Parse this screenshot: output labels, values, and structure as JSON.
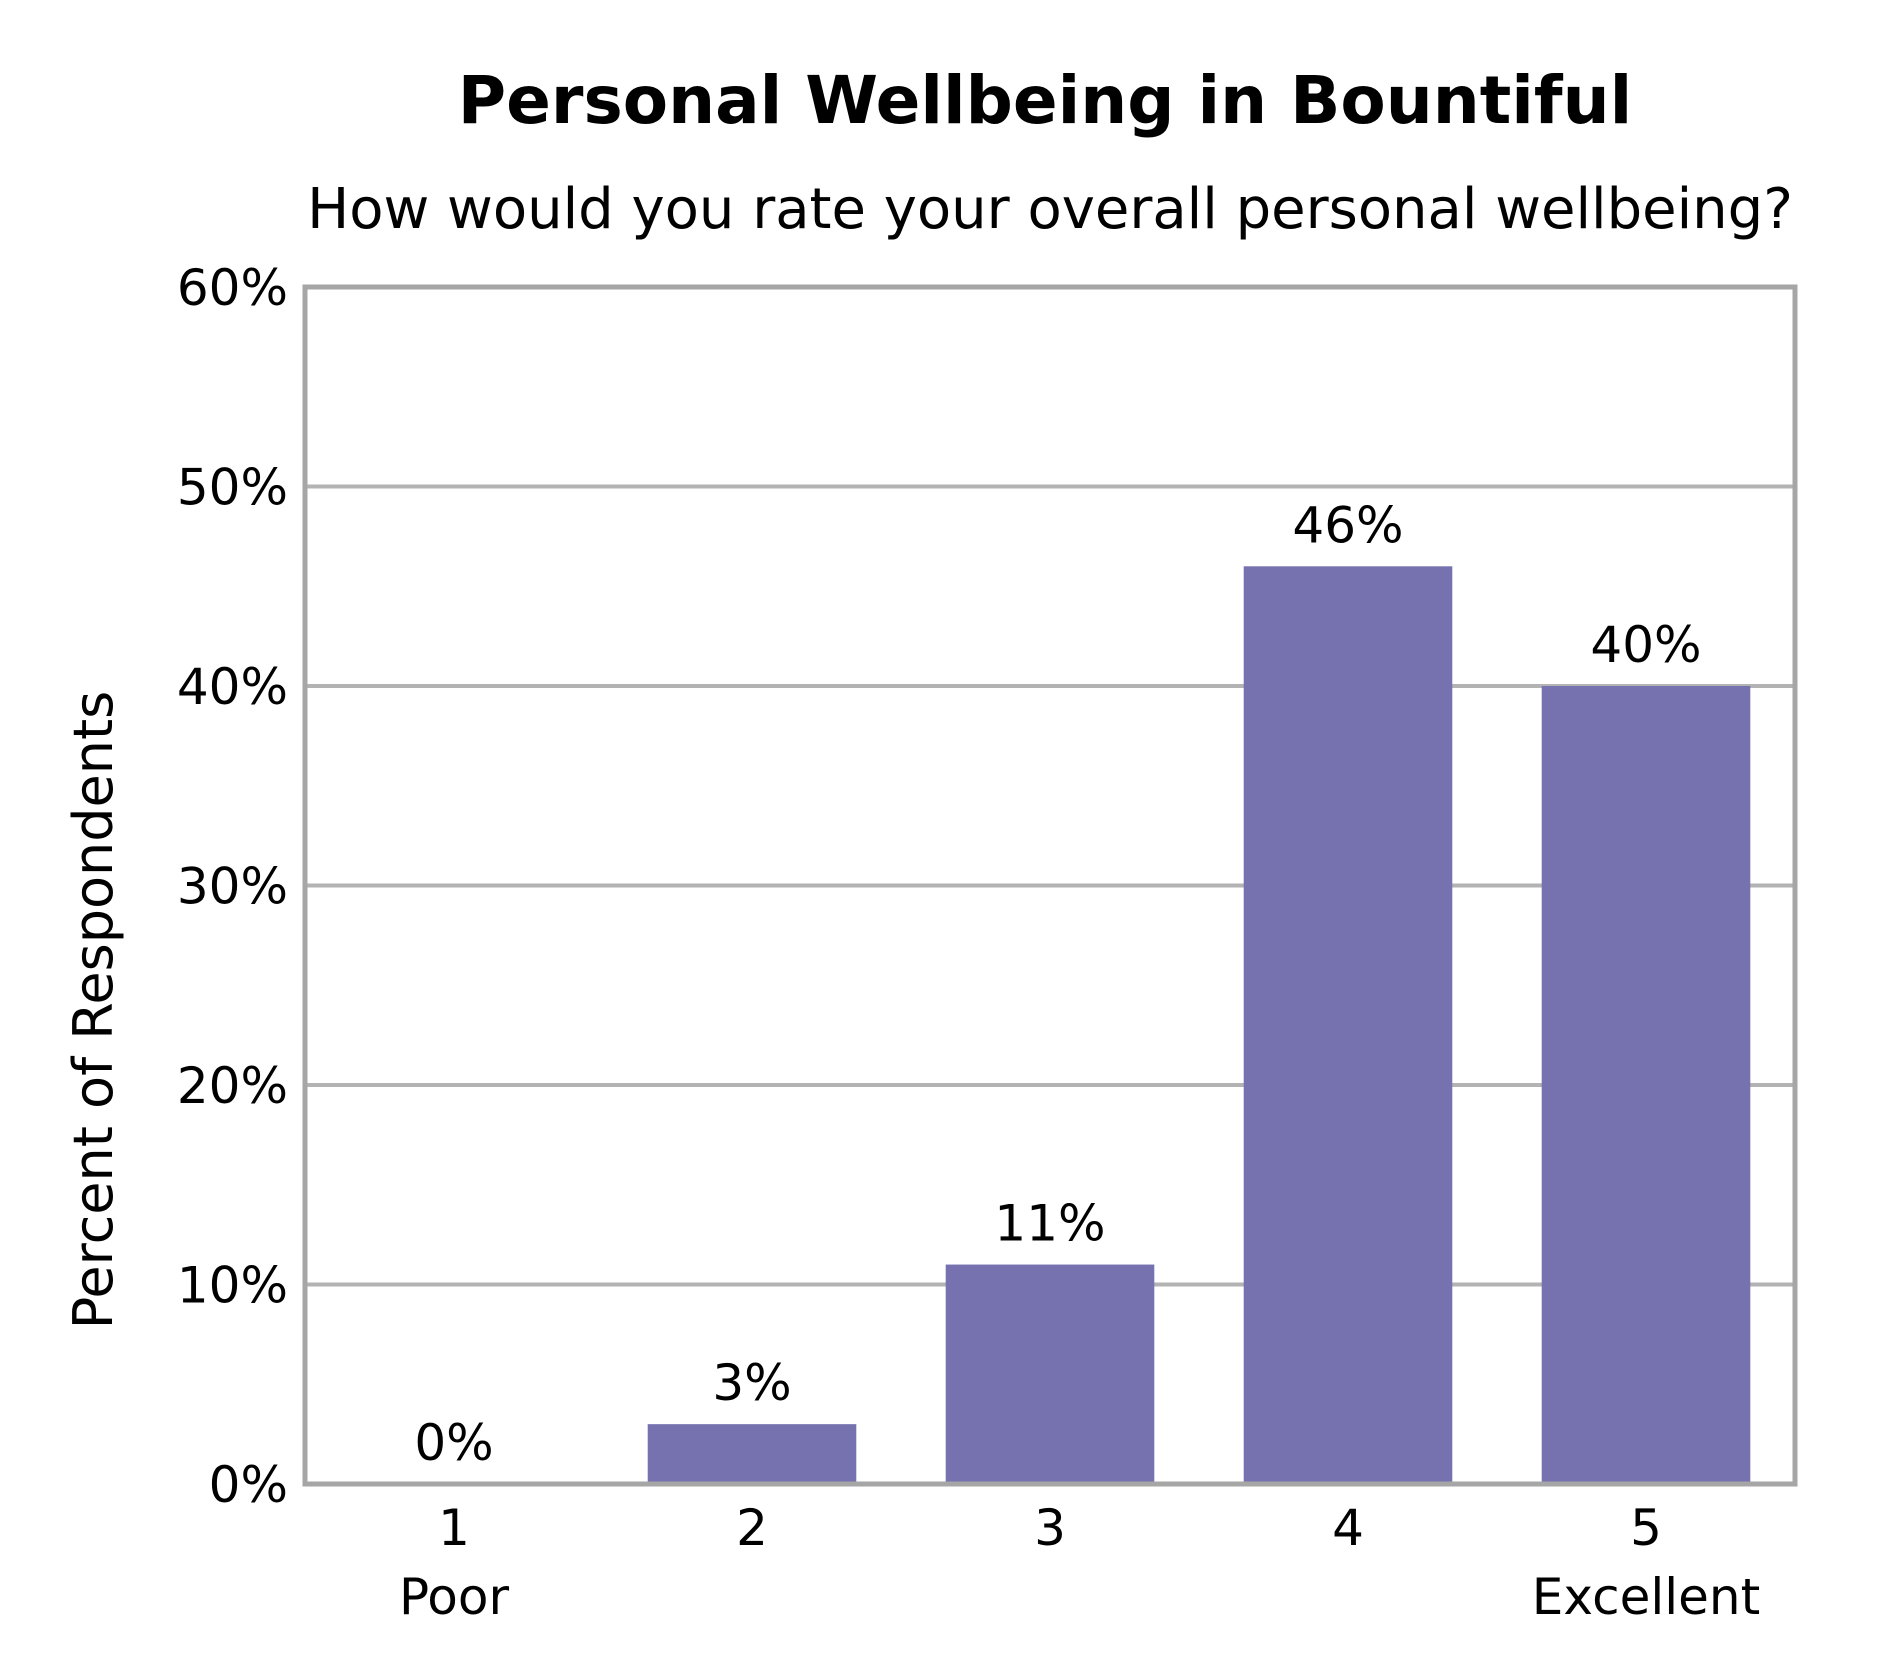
{
  "chart_data": {
    "type": "bar",
    "title": "Personal Wellbeing in Bountiful",
    "subtitle": "How would you rate your overall personal wellbeing?",
    "ylabel": "Percent of Respondents",
    "xlabel": "",
    "categories": [
      "1",
      "2",
      "3",
      "4",
      "5"
    ],
    "category_sublabels": [
      "Poor",
      "",
      "",
      "",
      "Excellent"
    ],
    "values": [
      0,
      3,
      11,
      46,
      40
    ],
    "data_labels": [
      "0%",
      "3%",
      "11%",
      "46%",
      "40%"
    ],
    "ylim": [
      0,
      60
    ],
    "yticks": [
      0,
      10,
      20,
      30,
      40,
      50,
      60
    ],
    "ytick_labels": [
      "0%",
      "10%",
      "20%",
      "30%",
      "40%",
      "50%",
      "60%"
    ],
    "grid": true,
    "bar_color": "#7672b0",
    "grid_color": "#b3b3b3",
    "frame_color": "#a6a6a6"
  }
}
